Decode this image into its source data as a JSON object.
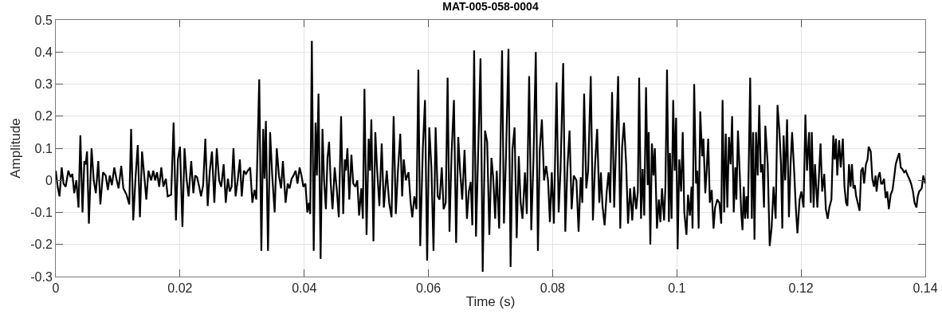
{
  "chart_data": {
    "type": "line",
    "title": "MAT-005-058-0004",
    "xlabel": "Time (s)",
    "ylabel": "Amplitude",
    "x": [
      0,
      0.0003,
      0.0006,
      0.00095,
      0.00125,
      0.00159,
      0.00202,
      0.00237,
      0.00267,
      0.00297,
      0.00331,
      0.00366,
      0.00396,
      0.0043,
      0.0046,
      0.00482,
      0.00503,
      0.00533,
      0.00576,
      0.00611,
      0.00645,
      0.00684,
      0.00718,
      0.00761,
      0.00804,
      0.00839,
      0.00869,
      0.00903,
      0.00942,
      0.00976,
      0.01011,
      0.01054,
      0.01088,
      0.0114,
      0.01183,
      0.01213,
      0.01247,
      0.01286,
      0.0132,
      0.01355,
      0.01389,
      0.01424,
      0.01458,
      0.01492,
      0.01535,
      0.0157,
      0.016,
      0.0163,
      0.01665,
      0.01699,
      0.01733,
      0.01772,
      0.01802,
      0.01858,
      0.01897,
      0.01935,
      0.01966,
      0.02,
      0.02039,
      0.02073,
      0.02108,
      0.02138,
      0.02181,
      0.02215,
      0.02245,
      0.02275,
      0.02309,
      0.02339,
      0.02373,
      0.02408,
      0.02446,
      0.0248,
      0.02515,
      0.02553,
      0.02592,
      0.0263,
      0.02664,
      0.02703,
      0.02737,
      0.02771,
      0.02801,
      0.02831,
      0.02861,
      0.02895,
      0.02929,
      0.02964,
      0.02994,
      0.03028,
      0.03062,
      0.03092,
      0.0313,
      0.03165,
      0.03199,
      0.03229,
      0.03276,
      0.0331,
      0.0334,
      0.03361,
      0.03383,
      0.03417,
      0.03451,
      0.03485,
      0.03524,
      0.03558,
      0.03593,
      0.03627,
      0.03657,
      0.037,
      0.03734,
      0.03764,
      0.03798,
      0.03828,
      0.03862,
      0.03892,
      0.03926,
      0.03956,
      0.03986,
      0.0402,
      0.0405,
      0.04076,
      0.04097,
      0.04123,
      0.04153,
      0.04183,
      0.04204,
      0.0423,
      0.04264,
      0.04294,
      0.0432,
      0.04349,
      0.04375,
      0.04401,
      0.04427,
      0.04456,
      0.04491,
      0.04525,
      0.04557,
      0.04594,
      0.04628,
      0.04654,
      0.04671,
      0.04696,
      0.04726,
      0.0476,
      0.0479,
      0.04825,
      0.04855,
      0.04884,
      0.04919,
      0.04944,
      0.0497,
      0.05004,
      0.05038,
      0.0506,
      0.05081,
      0.05115,
      0.05145,
      0.05175,
      0.0521,
      0.05248,
      0.05282,
      0.05329,
      0.05368,
      0.05406,
      0.0544,
      0.05475,
      0.05509,
      0.05547,
      0.05577,
      0.05603,
      0.05637,
      0.0568,
      0.05714,
      0.0574,
      0.05774,
      0.05808,
      0.05838,
      0.05868,
      0.05911,
      0.05945,
      0.05979,
      0.06014,
      0.06048,
      0.06082,
      0.06116,
      0.0615,
      0.0618,
      0.06215,
      0.06245,
      0.06279,
      0.06309,
      0.06339,
      0.06373,
      0.06411,
      0.06446,
      0.0648,
      0.0651,
      0.06544,
      0.06582,
      0.0662,
      0.06651,
      0.06681,
      0.06707,
      0.06736,
      0.06766,
      0.06801,
      0.06839,
      0.06874,
      0.06912,
      0.06946,
      0.06981,
      0.07015,
      0.07041,
      0.07075,
      0.071,
      0.07139,
      0.07186,
      0.07216,
      0.0725,
      0.07289,
      0.07323,
      0.07353,
      0.07387,
      0.07421,
      0.07455,
      0.07485,
      0.07515,
      0.07554,
      0.07584,
      0.07622,
      0.07656,
      0.07691,
      0.07729,
      0.07763,
      0.07793,
      0.07827,
      0.07862,
      0.07896,
      0.07926,
      0.07956,
      0.07986,
      0.0802,
      0.08063,
      0.08097,
      0.08127,
      0.0817,
      0.08204,
      0.08238,
      0.08272,
      0.08306,
      0.08341,
      0.08383,
      0.08418,
      0.08452,
      0.08478,
      0.08507,
      0.08542,
      0.08572,
      0.08614,
      0.08649,
      0.08683,
      0.08717,
      0.08751,
      0.08777,
      0.08803,
      0.08837,
      0.08871,
      0.08901,
      0.08927,
      0.08957,
      0.08991,
      0.09016,
      0.09055,
      0.09089,
      0.09119,
      0.09149,
      0.09184,
      0.09214,
      0.09248,
      0.09282,
      0.09312,
      0.09346,
      0.09372,
      0.09393,
      0.09423,
      0.09449,
      0.09475,
      0.09504,
      0.0953,
      0.09547,
      0.09573,
      0.09599,
      0.09624,
      0.09646,
      0.0968,
      0.0971,
      0.09735,
      0.09761,
      0.09795,
      0.09816,
      0.09842,
      0.09872,
      0.09889,
      0.09915,
      0.09941,
      0.09966,
      0.09988,
      0.10013,
      0.10039,
      0.10069,
      0.10095,
      0.1012,
      0.10155,
      0.1018,
      0.1021,
      0.10236,
      0.10253,
      0.10279,
      0.10309,
      0.1033,
      0.10351,
      0.10377,
      0.10407,
      0.10428,
      0.10458,
      0.1048,
      0.10505,
      0.10531,
      0.10561,
      0.10591,
      0.10616,
      0.10651,
      0.10685,
      0.10715,
      0.10736,
      0.10762,
      0.10788,
      0.10813,
      0.10839,
      0.10865,
      0.1089,
      0.10916,
      0.10942,
      0.10959,
      0.10984,
      0.11014,
      0.11036,
      0.11057,
      0.11078,
      0.11099,
      0.11121,
      0.11143,
      0.11181,
      0.11207,
      0.11228,
      0.1125,
      0.11275,
      0.11301,
      0.11327,
      0.11352,
      0.11378,
      0.11403,
      0.11425,
      0.11463,
      0.11495,
      0.11527,
      0.11557,
      0.11591,
      0.11621,
      0.11651,
      0.11677,
      0.11698,
      0.11719,
      0.11745,
      0.11775,
      0.11805,
      0.11831,
      0.11856,
      0.1189,
      0.11916,
      0.11942,
      0.11976,
      0.12006,
      0.1204,
      0.1207,
      0.12096,
      0.1213,
      0.12156,
      0.12173,
      0.12203,
      0.12224,
      0.12263,
      0.12288,
      0.12314,
      0.1234,
      0.12374,
      0.12399,
      0.12429,
      0.12455,
      0.12489,
      0.12519,
      0.12541,
      0.12562,
      0.12583,
      0.12613,
      0.12639,
      0.12673,
      0.12699,
      0.12725,
      0.12746,
      0.12772,
      0.12797,
      0.12819,
      0.12844,
      0.12866,
      0.12887,
      0.12913,
      0.12943,
      0.12968,
      0.12994,
      0.13015,
      0.13045,
      0.13071,
      0.13088,
      0.13122,
      0.13148,
      0.13174,
      0.132,
      0.13216,
      0.13242,
      0.13268,
      0.13289,
      0.1331,
      0.13336,
      0.13362,
      0.13388,
      0.13413,
      0.13443,
      0.13473,
      0.13503,
      0.13524,
      0.13554,
      0.1358,
      0.13606,
      0.13631,
      0.13661,
      0.13687,
      0.13717,
      0.13742,
      0.13772,
      0.13802,
      0.13828,
      0.13858,
      0.13879,
      0.13901,
      0.13922,
      0.13943,
      0.13969,
      0.14
    ],
    "series": [
      {
        "color": "#000000",
        "values": [
          0.03,
          -0.02,
          -0.05,
          0.04,
          -0.01,
          -0.02,
          0.03,
          0.01,
          0.02,
          -0.04,
          0,
          -0.085,
          0.14,
          -0.1,
          0.06,
          0.05,
          0.09,
          -0.135,
          0.1,
          0,
          -0.04,
          0.06,
          -0.075,
          0.025,
          0.015,
          -0.03,
          0.015,
          -0.015,
          0.04,
          0.005,
          -0.025,
          0.045,
          -0.025,
          -0.045,
          -0.075,
          0.16,
          -0.125,
          0.015,
          0.11,
          -0.115,
          0.09,
          0.015,
          -0.06,
          0.03,
          0,
          0.03,
          0,
          0.025,
          -0.02,
          0.04,
          -0.02,
          0.005,
          -0.05,
          -0.045,
          0.18,
          -0.125,
          0.065,
          0.105,
          -0.145,
          0.1,
          0,
          -0.05,
          0.06,
          -0.04,
          0.015,
          0.01,
          -0.02,
          -0.05,
          -0.015,
          0.13,
          -0.08,
          0.03,
          0.09,
          -0.07,
          0.1,
          0,
          -0.02,
          0.05,
          -0.07,
          0.005,
          -0.035,
          -0.02,
          0.1,
          -0.05,
          0,
          0.065,
          -0.05,
          0.03,
          0.02,
          0.03,
          0.04,
          -0.07,
          -0.03,
          -0.06,
          0.315,
          -0.22,
          0.16,
          0.005,
          0.185,
          -0.22,
          0.15,
          0.015,
          -0.1,
          0.1,
          0.015,
          -0.025,
          0.06,
          -0.07,
          -0.01,
          -0.025,
          0.005,
          0.015,
          0.03,
          -0.01,
          0.04,
          0.015,
          -0.02,
          -0.01,
          -0.1,
          -0.07,
          -0.105,
          0.435,
          -0.22,
          0.18,
          0.015,
          0.27,
          -0.245,
          0.16,
          0,
          -0.09,
          0.07,
          0.12,
          -0.01,
          -0.09,
          0.04,
          -0.03,
          -0.115,
          0.2,
          -0.105,
          0.065,
          0.03,
          0.1,
          -0.06,
          0.08,
          -0.01,
          -0.02,
          0,
          -0.11,
          -0.025,
          -0.12,
          0.285,
          -0.17,
          0.13,
          0.03,
          0.19,
          -0.19,
          0.15,
          0.03,
          -0.08,
          0.115,
          -0.085,
          0.03,
          -0.07,
          -0.115,
          0.2,
          -0.105,
          0.03,
          0.145,
          -0.05,
          0.065,
          0,
          0.025,
          -0.07,
          -0.115,
          -0.05,
          -0.09,
          0.345,
          -0.205,
          0.105,
          0.25,
          -0.25,
          0.165,
          0.04,
          -0.22,
          0.165,
          -0.05,
          -0.06,
          0.04,
          -0.09,
          -0.07,
          0.32,
          -0.16,
          0.085,
          0.25,
          -0.195,
          0.135,
          0.03,
          -0.06,
          0.095,
          -0.12,
          -0.035,
          -0.005,
          -0.14,
          0.405,
          -0.175,
          0.085,
          0.38,
          -0.285,
          0.155,
          0.12,
          -0.17,
          0.07,
          0.015,
          -0.12,
          0.03,
          -0.15,
          0.405,
          -0.135,
          0.08,
          0.41,
          -0.27,
          0.095,
          0.165,
          -0.18,
          0.075,
          -0.07,
          -0.12,
          0.025,
          -0.105,
          0.325,
          -0.155,
          0.06,
          0.4,
          -0.22,
          0.095,
          0.19,
          0,
          0.045,
          0,
          -0.13,
          0.025,
          -0.135,
          0.305,
          -0.1,
          0.03,
          0.365,
          -0.16,
          0.04,
          0.155,
          -0.09,
          0.015,
          0,
          -0.16,
          0.01,
          -0.07,
          0.27,
          -0.025,
          0.03,
          0.325,
          -0.125,
          0.05,
          0.16,
          -0.07,
          0.025,
          -0.08,
          -0.14,
          -0.035,
          0.025,
          -0.07,
          0.275,
          -0.085,
          0.075,
          0.325,
          -0.15,
          0.105,
          0.18,
          0.05,
          -0.135,
          -0.025,
          -0.125,
          -0.02,
          -0.09,
          -0.035,
          0.32,
          -0.12,
          0.035,
          -0.11,
          0.29,
          -0.015,
          0.15,
          -0.2,
          0.115,
          0.015,
          0.1,
          -0.15,
          -0.06,
          -0.13,
          -0.025,
          -0.125,
          -0.02,
          0.345,
          -0.13,
          0.085,
          -0.12,
          0.25,
          0.03,
          0.195,
          -0.215,
          0.065,
          -0.035,
          0.15,
          -0.1,
          -0.17,
          -0.045,
          -0.11,
          -0.02,
          -0.15,
          0.3,
          -0.01,
          0.03,
          -0.15,
          0.215,
          0.075,
          0.13,
          -0.04,
          0.03,
          0.13,
          -0.07,
          -0.03,
          -0.15,
          -0.085,
          -0.06,
          -0.07,
          -0.135,
          0.25,
          -0.1,
          0.145,
          -0.085,
          0.135,
          0.05,
          0.2,
          -0.1,
          0.04,
          -0.06,
          0.155,
          0.015,
          -0.1,
          -0.155,
          -0.02,
          -0.12,
          -0.05,
          -0.12,
          0.32,
          -0.12,
          0.15,
          -0.185,
          0.15,
          0.015,
          0.235,
          0.025,
          0.05,
          -0.085,
          0.17,
          0.05,
          -0.205,
          -0.145,
          -0.02,
          -0.12,
          0.235,
          0.155,
          0.05,
          -0.15,
          0.14,
          0,
          0.19,
          -0.115,
          0.05,
          0.15,
          0.025,
          -0.085,
          -0.165,
          -0.06,
          -0.035,
          -0.085,
          0.205,
          0.03,
          0.15,
          -0.07,
          0.15,
          -0.085,
          0.05,
          -0.085,
          0.015,
          0.115,
          -0.035,
          0.02,
          -0.09,
          -0.12,
          -0.085,
          -0.06,
          0.14,
          0.065,
          0.13,
          0.015,
          0.125,
          0.04,
          0.13,
          -0.02,
          -0.07,
          -0.08,
          0.05,
          -0.02,
          0.05,
          -0.025,
          -0.015,
          -0.05,
          -0.07,
          -0.095,
          0.03,
          0.04,
          -0.01,
          0.05,
          0.065,
          0.105,
          0.09,
          0.005,
          -0.02,
          0.015,
          -0.035,
          0.01,
          0.025,
          -0.01,
          -0.01,
          0.005,
          -0.055,
          -0.035,
          -0.09,
          -0.045,
          -0.03,
          0.015,
          0.05,
          0.07,
          0.085,
          0.04,
          0.035,
          0.025,
          0.03,
          0.015,
          0.005,
          -0.01,
          -0.035,
          -0.07,
          -0.085,
          -0.05,
          -0.035,
          -0.03,
          -0.025,
          0.015,
          -0.01
        ]
      }
    ],
    "xlim": [
      0,
      0.14
    ],
    "xticks": [
      0,
      0.02,
      0.04,
      0.06,
      0.08,
      0.1,
      0.12,
      0.14
    ],
    "ylim": [
      -0.3,
      0.5
    ],
    "yticks": [
      -0.3,
      -0.2,
      -0.1,
      0,
      0.1,
      0.2,
      0.3,
      0.4,
      0.5
    ],
    "grid": true,
    "line_style": "solid"
  }
}
